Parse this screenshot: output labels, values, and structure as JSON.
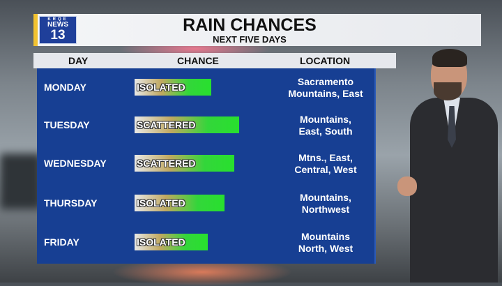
{
  "header": {
    "logo": {
      "top": "KRQE",
      "middle": "NEWS",
      "bottom": "13"
    },
    "title": "RAIN CHANCES",
    "subtitle": "NEXT FIVE DAYS"
  },
  "columns": {
    "day": "DAY",
    "chance": "CHANCE",
    "location": "LOCATION"
  },
  "rows": [
    {
      "day": "MONDAY",
      "chance": "ISOLATED",
      "level": 0.73,
      "location_line1": "Sacramento",
      "location_line2": "Mountains, East"
    },
    {
      "day": "TUESDAY",
      "chance": "SCATTERED",
      "level": 1.0,
      "location_line1": "Mountains,",
      "location_line2": "East, South"
    },
    {
      "day": "WEDNESDAY",
      "chance": "SCATTERED",
      "level": 0.95,
      "location_line1": "Mtns., East,",
      "location_line2": "Central, West"
    },
    {
      "day": "THURSDAY",
      "chance": "ISOLATED",
      "level": 0.86,
      "location_line1": "Mountains,",
      "location_line2": "Northwest"
    },
    {
      "day": "FRIDAY",
      "chance": "ISOLATED",
      "level": 0.7,
      "location_line1": "Mountains",
      "location_line2": "North, West"
    }
  ],
  "colors": {
    "panel": "#173f93",
    "accent": "#f2c230",
    "bar_high": "#28e02e"
  }
}
